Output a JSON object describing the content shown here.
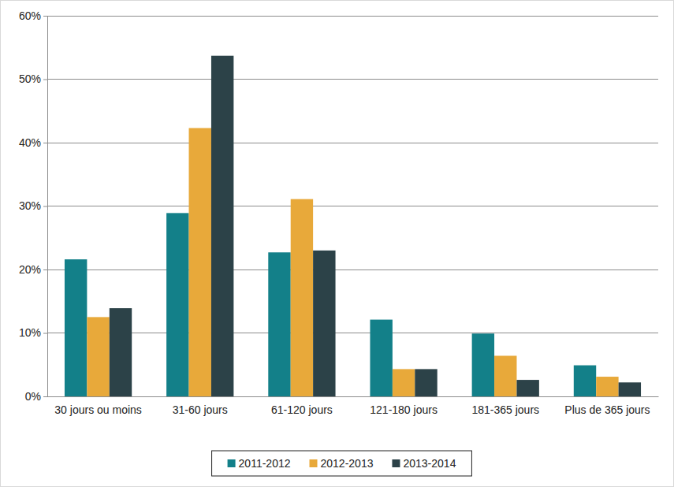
{
  "chart_data": {
    "type": "bar",
    "categories": [
      "30 jours ou moins",
      "31-60 jours",
      "61-120 jours",
      "121-180 jours",
      "181-365 jours",
      "Plus de 365 jours"
    ],
    "series": [
      {
        "name": "2011-2012",
        "color": "#138089",
        "values": [
          21.6,
          28.9,
          22.7,
          12.1,
          9.9,
          4.9
        ]
      },
      {
        "name": "2012-2013",
        "color": "#e8a93a",
        "values": [
          12.5,
          42.3,
          31.1,
          4.3,
          6.4,
          3.1
        ]
      },
      {
        "name": "2013-2014",
        "color": "#2c4248",
        "values": [
          13.9,
          53.7,
          23.0,
          4.3,
          2.6,
          2.2
        ]
      }
    ],
    "ylim": [
      0,
      60
    ],
    "yticks": [
      {
        "value": 0,
        "label": "0%"
      },
      {
        "value": 10,
        "label": "10%"
      },
      {
        "value": 20,
        "label": "20%"
      },
      {
        "value": 30,
        "label": "30%"
      },
      {
        "value": 40,
        "label": "40%"
      },
      {
        "value": 50,
        "label": "50%"
      },
      {
        "value": 60,
        "label": "60%"
      }
    ],
    "grid": true,
    "legend": "bottom"
  }
}
